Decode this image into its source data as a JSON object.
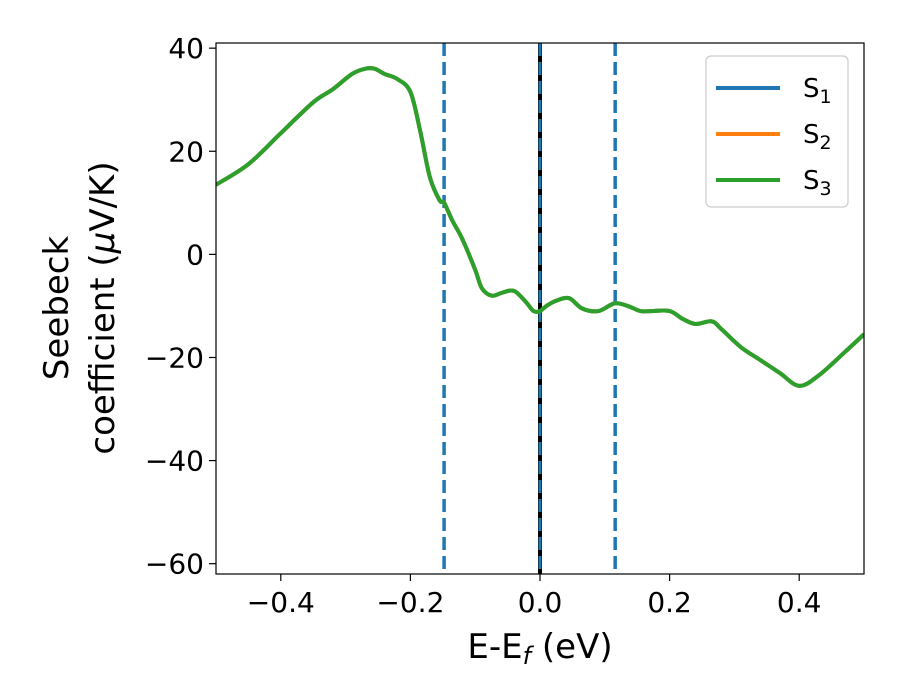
{
  "chart_data": {
    "type": "line",
    "xlabel": "E-E",
    "xlabel_sub": "f",
    "xlabel_unit": "(eV)",
    "ylabel_line1": "Seebeck",
    "ylabel_line2_pre": "coefficient  (",
    "ylabel_mu": "μ",
    "ylabel_line2_post": "V/K)",
    "xlim": [
      -0.5,
      0.5
    ],
    "ylim": [
      -62,
      41
    ],
    "x_ticks": [
      -0.4,
      -0.2,
      0.0,
      0.2,
      0.4
    ],
    "x_tick_labels": [
      "−0.4",
      "−0.2",
      "0.0",
      "0.2",
      "0.4"
    ],
    "y_ticks": [
      -60,
      -40,
      -20,
      0,
      20,
      40
    ],
    "y_tick_labels": [
      "−60",
      "−40",
      "−20",
      "0",
      "20",
      "40"
    ],
    "grid": false,
    "legend_position": "top-right",
    "series": [
      {
        "name": "S",
        "sub": "1",
        "color": "#1f77b4"
      },
      {
        "name": "S",
        "sub": "2",
        "color": "#ff7f0e"
      },
      {
        "name": "S",
        "sub": "3",
        "color": "#2ca02c"
      }
    ],
    "x": [
      -0.5,
      -0.45,
      -0.4,
      -0.35,
      -0.32,
      -0.29,
      -0.27,
      -0.255,
      -0.24,
      -0.22,
      -0.2,
      -0.185,
      -0.17,
      -0.155,
      -0.148,
      -0.135,
      -0.12,
      -0.1,
      -0.09,
      -0.075,
      -0.06,
      -0.045,
      -0.035,
      -0.02,
      -0.01,
      0.0,
      0.01,
      0.025,
      0.045,
      0.065,
      0.09,
      0.115,
      0.135,
      0.155,
      0.17,
      0.2,
      0.22,
      0.24,
      0.265,
      0.28,
      0.31,
      0.34,
      0.37,
      0.4,
      0.43,
      0.47,
      0.5
    ],
    "y": [
      13.5,
      17.5,
      23.5,
      29.5,
      32.0,
      35.0,
      36.0,
      36.0,
      35.0,
      34.0,
      31.5,
      24.0,
      15.0,
      10.5,
      10.0,
      6.5,
      3.0,
      -3.0,
      -6.5,
      -8.0,
      -7.5,
      -7.0,
      -7.5,
      -9.5,
      -11.0,
      -11.0,
      -10.0,
      -9.0,
      -8.5,
      -10.5,
      -11.0,
      -9.5,
      -10.0,
      -11.0,
      -11.0,
      -11.0,
      -12.5,
      -13.5,
      -13.0,
      -14.5,
      -18.0,
      -20.5,
      -23.0,
      -25.5,
      -23.5,
      -19.0,
      -15.5
    ],
    "vlines_dashed": [
      -0.148,
      0.0,
      0.116
    ],
    "vline_solid": 0.0,
    "vline_dashed_color": "#1f77b4",
    "vline_solid_color": "#000000"
  }
}
